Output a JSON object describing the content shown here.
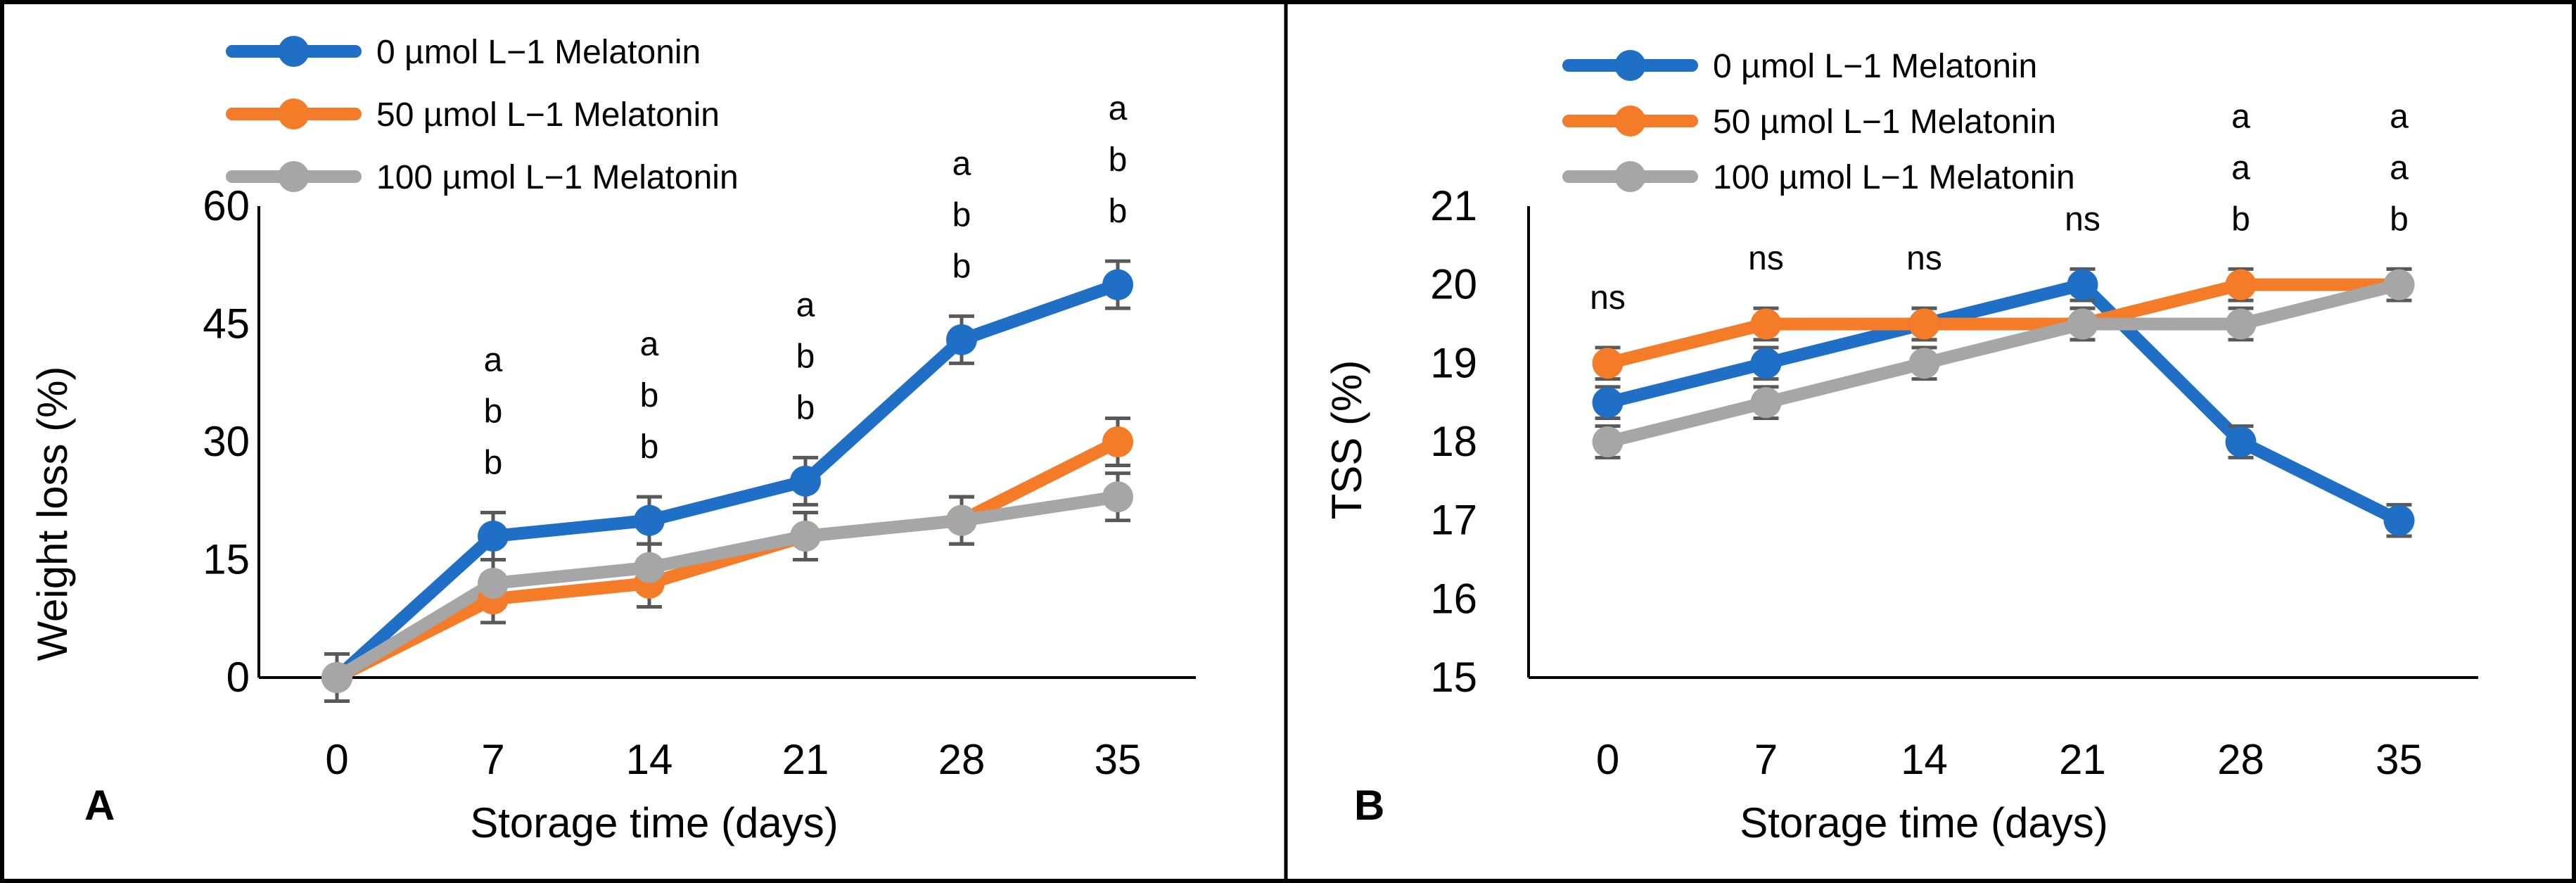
{
  "chart_data": [
    {
      "type": "line",
      "panel_label": "A",
      "xlabel": "Storage time (days)",
      "ylabel": "Weight loss (%)",
      "categories": [
        "0",
        "7",
        "14",
        "21",
        "28",
        "35"
      ],
      "ylim": [
        0,
        60
      ],
      "yticks": [
        "0",
        "15",
        "30",
        "45",
        "60"
      ],
      "grid": false,
      "legend_position": "top-left",
      "series": [
        {
          "name": "0 µmol L−1 Melatonin",
          "color": "#1F6FC6",
          "values": [
            0,
            18,
            20,
            25,
            43,
            50
          ],
          "errors": [
            3,
            3,
            3,
            3,
            3,
            3
          ]
        },
        {
          "name": "50 µmol L−1 Melatonin",
          "color": "#F47B28",
          "values": [
            0,
            10,
            12,
            18,
            20,
            30
          ],
          "errors": [
            3,
            3,
            3,
            3,
            3,
            3
          ]
        },
        {
          "name": "100 µmol L−1 Melatonin",
          "color": "#A6A6A6",
          "values": [
            0,
            12,
            14,
            18,
            20,
            23
          ],
          "errors": [
            3,
            3,
            3,
            3,
            3,
            3
          ]
        }
      ],
      "significance": [
        {
          "category": "7",
          "letters": [
            "a",
            "b",
            "b"
          ]
        },
        {
          "category": "14",
          "letters": [
            "a",
            "b",
            "b"
          ]
        },
        {
          "category": "21",
          "letters": [
            "a",
            "b",
            "b"
          ]
        },
        {
          "category": "28",
          "letters": [
            "a",
            "b",
            "b"
          ]
        },
        {
          "category": "35",
          "letters": [
            "a",
            "b",
            "b"
          ]
        }
      ]
    },
    {
      "type": "line",
      "panel_label": "B",
      "xlabel": "Storage time (days)",
      "ylabel": "TSS (%)",
      "categories": [
        "0",
        "7",
        "14",
        "21",
        "28",
        "35"
      ],
      "ylim": [
        15,
        21
      ],
      "yticks": [
        "15",
        "16",
        "17",
        "18",
        "19",
        "20",
        "21"
      ],
      "grid": false,
      "legend_position": "top-left",
      "series": [
        {
          "name": "0 µmol L−1 Melatonin",
          "color": "#1F6FC6",
          "values": [
            18.5,
            19,
            19.5,
            20,
            18,
            17
          ],
          "errors": [
            0.2,
            0.2,
            0.2,
            0.2,
            0.2,
            0.2
          ]
        },
        {
          "name": "50 µmol L−1 Melatonin",
          "color": "#F47B28",
          "values": [
            19,
            19.5,
            19.5,
            19.5,
            20,
            20
          ],
          "errors": [
            0.2,
            0.2,
            0.2,
            0.2,
            0.2,
            0.2
          ]
        },
        {
          "name": "100 µmol L−1 Melatonin",
          "color": "#A6A6A6",
          "values": [
            18,
            18.5,
            19,
            19.5,
            19.5,
            20
          ],
          "errors": [
            0.2,
            0.2,
            0.2,
            0.2,
            0.2,
            0.2
          ]
        }
      ],
      "significance": [
        {
          "category": "0",
          "letters": [
            "ns"
          ]
        },
        {
          "category": "7",
          "letters": [
            "ns"
          ]
        },
        {
          "category": "14",
          "letters": [
            "ns"
          ]
        },
        {
          "category": "21",
          "letters": [
            "ns"
          ]
        },
        {
          "category": "28",
          "letters": [
            "a",
            "a",
            "b"
          ]
        },
        {
          "category": "35",
          "letters": [
            "a",
            "a",
            "b"
          ]
        }
      ]
    }
  ]
}
